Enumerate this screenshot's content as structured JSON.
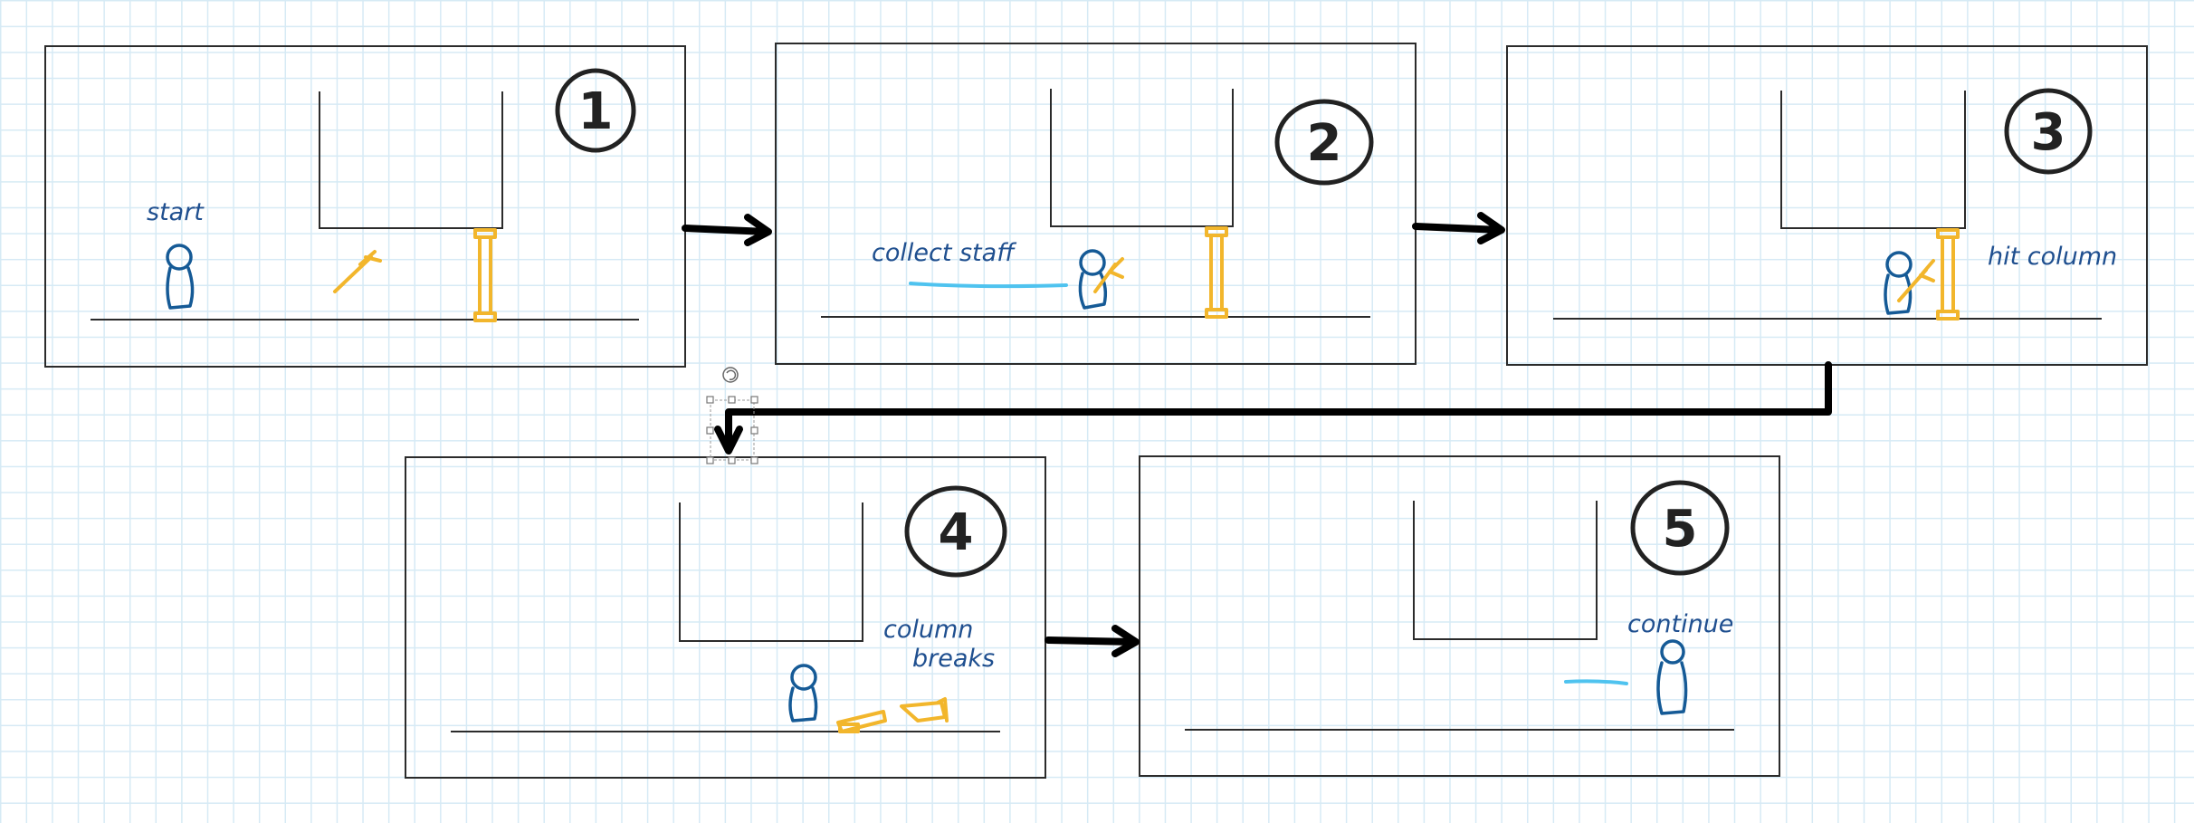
{
  "panels": [
    {
      "number": "1",
      "label": "start"
    },
    {
      "number": "2",
      "label": "collect staff"
    },
    {
      "number": "3",
      "label": "hit column"
    },
    {
      "number": "4",
      "label_line1": "column",
      "label_line2": "breaks"
    },
    {
      "number": "5",
      "label": "continue"
    }
  ],
  "colors": {
    "ink": "#2b2b2b",
    "text_blue": "#1f4f8f",
    "person_blue": "#155a96",
    "column_yellow": "#f2b62c",
    "trail_cyan": "#4fc3ef",
    "grid": "#d6eaf5"
  }
}
